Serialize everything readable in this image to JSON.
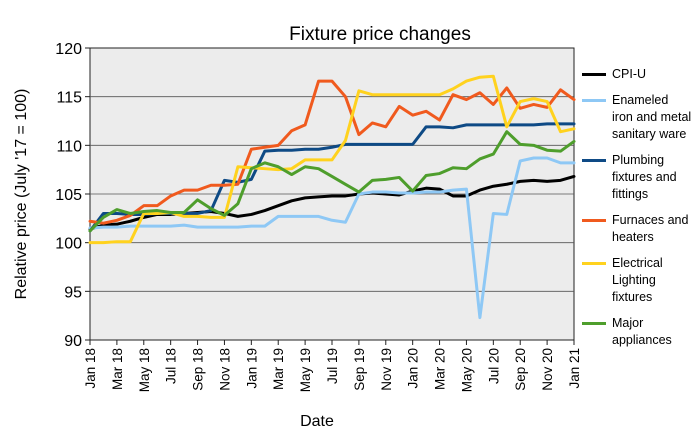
{
  "chart_data": {
    "type": "line",
    "title": "Fixture price changes",
    "xlabel": "Date",
    "ylabel": "Relative price (July '17 = 100)",
    "ylim": [
      90,
      120
    ],
    "yticks": [
      90,
      95,
      100,
      105,
      110,
      115,
      120
    ],
    "x": [
      "Jan 18",
      "Feb 18",
      "Mar 18",
      "Apr 18",
      "May 18",
      "Jun 18",
      "Jul 18",
      "Aug 18",
      "Sep 18",
      "Oct 18",
      "Nov 18",
      "Dec 18",
      "Jan 19",
      "Feb 19",
      "Mar 19",
      "Apr 19",
      "May 19",
      "Jun 19",
      "Jul 19",
      "Aug 19",
      "Sep 19",
      "Oct 19",
      "Nov 19",
      "Dec 19",
      "Jan 20",
      "Feb 20",
      "Mar 20",
      "Apr 20",
      "May 20",
      "Jun 20",
      "Jul 20",
      "Aug 20",
      "Sep 20",
      "Oct 20",
      "Nov 20",
      "Dec 20",
      "Jan 21"
    ],
    "xtick_labels": [
      "Jan 18",
      "Mar 18",
      "May 18",
      "Jul 18",
      "Sep 18",
      "Nov 18",
      "Jan 19",
      "Mar 19",
      "May 19",
      "Jul 19",
      "Sep 19",
      "Nov 19",
      "Jan 20",
      "Mar 20",
      "May 20",
      "Jul 20",
      "Sep 20",
      "Nov 20",
      "Jan 21"
    ],
    "grid": true,
    "legend_position": "right",
    "series": [
      {
        "name": "CPI-U",
        "color": "#000000",
        "values": [
          101.4,
          101.8,
          101.9,
          102.2,
          102.6,
          102.9,
          102.9,
          103.0,
          103.1,
          103.2,
          103.0,
          102.7,
          102.9,
          103.3,
          103.8,
          104.3,
          104.6,
          104.7,
          104.8,
          104.8,
          105.0,
          105.1,
          105.0,
          104.9,
          105.3,
          105.6,
          105.5,
          104.8,
          104.8,
          105.4,
          105.8,
          106.0,
          106.3,
          106.4,
          106.3,
          106.4,
          106.8
        ]
      },
      {
        "name": "Enameled iron and metal sanitary ware",
        "color": "#8ec8f5",
        "values": [
          101.5,
          101.6,
          101.6,
          101.7,
          101.7,
          101.7,
          101.7,
          101.8,
          101.6,
          101.6,
          101.6,
          101.6,
          101.7,
          101.7,
          102.7,
          102.7,
          102.7,
          102.7,
          102.3,
          102.1,
          105.0,
          105.2,
          105.2,
          105.1,
          105.1,
          105.2,
          105.2,
          105.4,
          105.5,
          92.3,
          103.0,
          102.9,
          108.4,
          108.7,
          108.7,
          108.2,
          108.2
        ]
      },
      {
        "name": "Plumbing fixtures and fittings",
        "color": "#0e4a85",
        "values": [
          101.2,
          103.0,
          103.0,
          102.9,
          102.9,
          103.0,
          103.0,
          103.0,
          103.0,
          103.3,
          106.4,
          106.2,
          106.5,
          109.4,
          109.5,
          109.5,
          109.6,
          109.6,
          109.8,
          110.1,
          110.1,
          110.1,
          110.1,
          110.1,
          110.1,
          111.9,
          111.9,
          111.8,
          112.1,
          112.1,
          112.1,
          112.1,
          112.1,
          112.1,
          112.2,
          112.2,
          112.2
        ]
      },
      {
        "name": "Furnaces and heaters",
        "color": "#f05a1e",
        "values": [
          102.2,
          102.0,
          102.3,
          102.8,
          103.8,
          103.8,
          104.8,
          105.4,
          105.4,
          105.9,
          105.9,
          106.0,
          109.6,
          109.8,
          110.0,
          111.5,
          112.1,
          116.6,
          116.6,
          115.0,
          111.1,
          112.3,
          111.9,
          114.0,
          113.1,
          113.5,
          112.6,
          115.2,
          114.7,
          115.4,
          114.2,
          115.9,
          113.8,
          114.2,
          113.9,
          115.7,
          114.7
        ]
      },
      {
        "name": "Electrical Lighting fixtures",
        "color": "#ffd21e",
        "values": [
          100.0,
          100.0,
          100.1,
          100.1,
          103.0,
          103.0,
          103.1,
          102.7,
          102.7,
          102.6,
          102.6,
          107.8,
          107.7,
          107.6,
          107.5,
          107.6,
          108.5,
          108.5,
          108.5,
          110.5,
          115.6,
          115.2,
          115.2,
          115.2,
          115.2,
          115.2,
          115.2,
          115.8,
          116.6,
          117.0,
          117.1,
          111.9,
          114.5,
          114.8,
          114.5,
          111.4,
          111.7
        ]
      },
      {
        "name": "Major appliances",
        "color": "#4e9e2c",
        "values": [
          101.2,
          102.6,
          103.4,
          103.0,
          103.2,
          103.3,
          103.1,
          103.1,
          104.4,
          103.5,
          102.8,
          104.0,
          107.6,
          108.2,
          107.8,
          107.0,
          107.8,
          107.6,
          106.8,
          106.0,
          105.2,
          106.4,
          106.5,
          106.7,
          105.3,
          106.9,
          107.1,
          107.7,
          107.6,
          108.6,
          109.1,
          111.4,
          110.1,
          110.0,
          109.5,
          109.4,
          110.4
        ]
      }
    ]
  }
}
